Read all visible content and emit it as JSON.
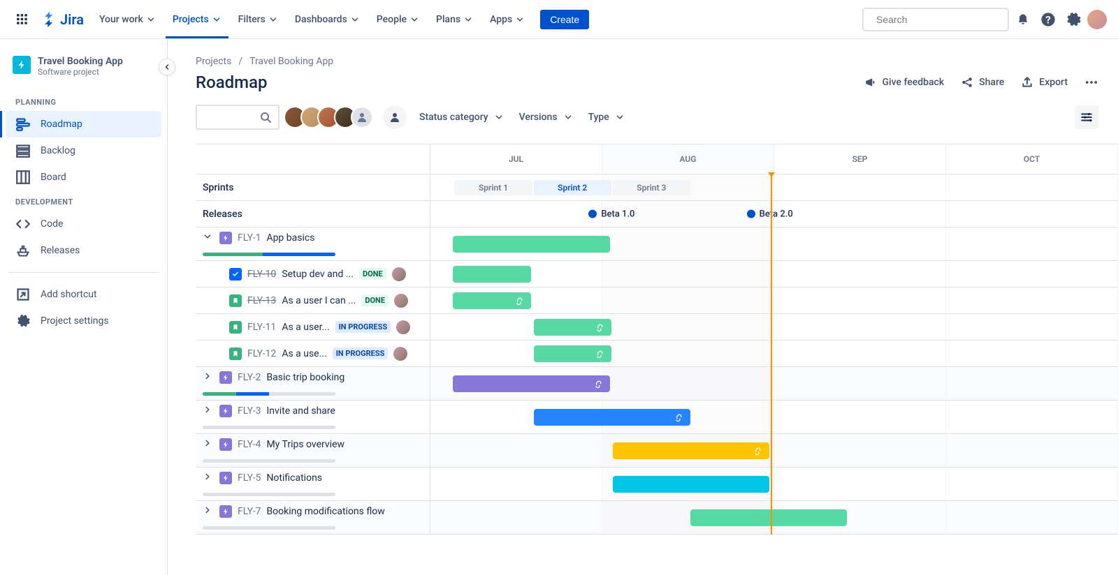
{
  "nav": {
    "product": "Jira",
    "items": [
      "Your work",
      "Projects",
      "Filters",
      "Dashboards",
      "People",
      "Plans",
      "Apps"
    ],
    "active": "Projects",
    "create": "Create",
    "search_placeholder": "Search"
  },
  "sidebar": {
    "project_name": "Travel Booking App",
    "project_type": "Software project",
    "sections": {
      "planning": {
        "label": "PLANNING",
        "items": [
          "Roadmap",
          "Backlog",
          "Board"
        ],
        "active": "Roadmap"
      },
      "development": {
        "label": "DEVELOPMENT",
        "items": [
          "Code",
          "Releases"
        ]
      }
    },
    "footer": [
      "Add shortcut",
      "Project settings"
    ]
  },
  "breadcrumb": [
    "Projects",
    "Travel Booking App"
  ],
  "page_title": "Roadmap",
  "header_actions": {
    "feedback": "Give feedback",
    "share": "Share",
    "export": "Export"
  },
  "filters": {
    "status": "Status category",
    "versions": "Versions",
    "type": "Type"
  },
  "timeline": {
    "months": [
      "JUL",
      "AUG",
      "SEP",
      "OCT"
    ],
    "shaded_month_index": 1,
    "today_pct": 49.5,
    "sprints_label": "Sprints",
    "releases_label": "Releases",
    "sprints": [
      {
        "name": "Sprint 1",
        "left_pct": 3.5,
        "width_pct": 11.3,
        "state": "past"
      },
      {
        "name": "Sprint 2",
        "left_pct": 15,
        "width_pct": 11.3,
        "state": "current"
      },
      {
        "name": "Sprint 3",
        "left_pct": 26.5,
        "width_pct": 11.3,
        "state": "past"
      }
    ],
    "releases": [
      {
        "name": "Beta 1.0",
        "left_pct": 23
      },
      {
        "name": "Beta 2.0",
        "left_pct": 46
      }
    ],
    "epics": [
      {
        "key": "FLY-1",
        "title": "App basics",
        "expanded": true,
        "progress": {
          "done": 45,
          "inprogress": 55,
          "todo": 0
        },
        "bar": {
          "color": "green",
          "left_pct": 3.3,
          "width_pct": 22.8,
          "link": false
        },
        "children": [
          {
            "key": "FLY-10",
            "title": "Setup dev and ...",
            "status": "DONE",
            "badge": "task",
            "done": true,
            "bar": {
              "color": "green",
              "left_pct": 3.3,
              "width_pct": 11.3
            }
          },
          {
            "key": "FLY-13",
            "title": "As a user I can ...",
            "status": "DONE",
            "badge": "story",
            "done": true,
            "bar": {
              "color": "green",
              "left_pct": 3.3,
              "width_pct": 11.3,
              "link": true
            }
          },
          {
            "key": "FLY-11",
            "title": "As a user...",
            "status": "IN PROGRESS",
            "badge": "story",
            "bar": {
              "color": "green",
              "left_pct": 15,
              "width_pct": 11.3,
              "link": true
            }
          },
          {
            "key": "FLY-12",
            "title": "As a use...",
            "status": "IN PROGRESS",
            "badge": "story",
            "bar": {
              "color": "green",
              "left_pct": 15,
              "width_pct": 11.3,
              "link": true
            }
          }
        ]
      },
      {
        "key": "FLY-2",
        "title": "Basic trip booking",
        "expanded": false,
        "alt": true,
        "progress": {
          "done": 25,
          "inprogress": 25,
          "todo": 50
        },
        "bar": {
          "color": "purple",
          "left_pct": 3.3,
          "width_pct": 22.8,
          "link": true
        }
      },
      {
        "key": "FLY-3",
        "title": "Invite and share",
        "expanded": false,
        "progress": {
          "done": 0,
          "inprogress": 0,
          "todo": 100
        },
        "bar": {
          "color": "blue",
          "left_pct": 15,
          "width_pct": 22.8,
          "link": true
        }
      },
      {
        "key": "FLY-4",
        "title": "My Trips overview",
        "expanded": false,
        "alt": true,
        "progress": {
          "done": 0,
          "inprogress": 0,
          "todo": 100
        },
        "bar": {
          "color": "yellow",
          "left_pct": 26.5,
          "width_pct": 22.8,
          "link": true
        }
      },
      {
        "key": "FLY-5",
        "title": "Notifications",
        "expanded": false,
        "progress": {
          "done": 0,
          "inprogress": 0,
          "todo": 100
        },
        "bar": {
          "color": "cyan",
          "left_pct": 26.5,
          "width_pct": 22.8,
          "link": false
        }
      },
      {
        "key": "FLY-7",
        "title": "Booking modifications flow",
        "expanded": false,
        "alt": true,
        "progress": {
          "done": 0,
          "inprogress": 0,
          "todo": 100
        },
        "bar": {
          "color": "green",
          "left_pct": 37.8,
          "width_pct": 22.8,
          "link": false
        }
      }
    ]
  }
}
